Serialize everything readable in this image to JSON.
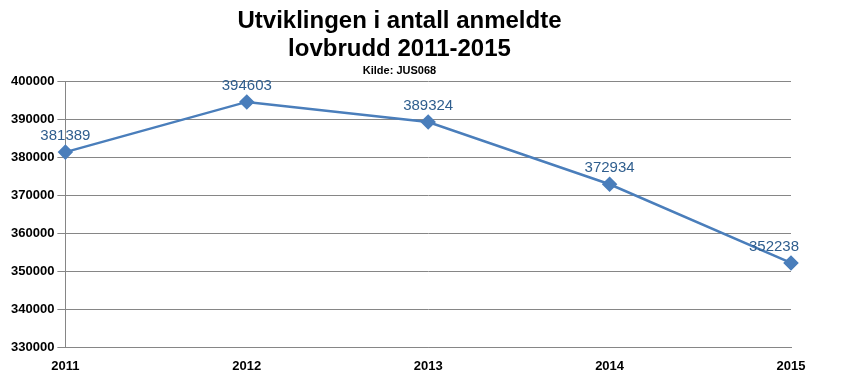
{
  "chart_data": {
    "type": "line",
    "title": [
      "Utviklingen i antall anmeldte",
      "lovbrudd 2011-2015"
    ],
    "subtitle": "Kilde: JUS068",
    "categories": [
      "2011",
      "2012",
      "2013",
      "2014",
      "2015"
    ],
    "values": [
      381389,
      394603,
      389324,
      372934,
      352238
    ],
    "color": "#4a7ebb",
    "marker": "diamond",
    "ylim": [
      330000,
      400000
    ],
    "yticks": [
      330000,
      340000,
      350000,
      360000,
      370000,
      380000,
      390000,
      400000
    ],
    "grid": true,
    "data_labels": true
  }
}
